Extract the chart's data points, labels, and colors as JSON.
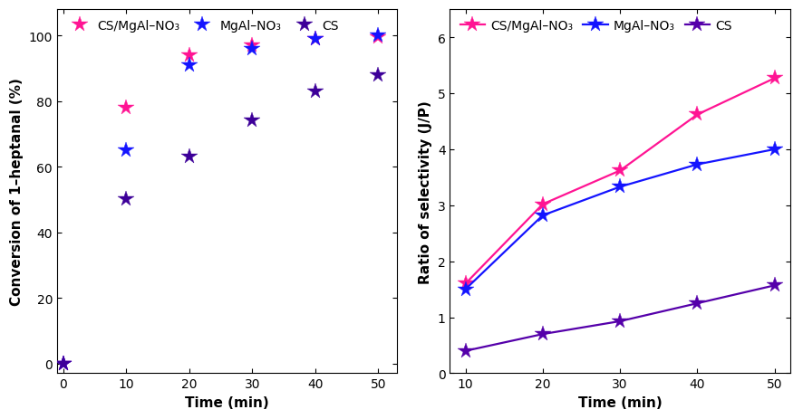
{
  "left": {
    "time_points": [
      0,
      10,
      20,
      30,
      40,
      50
    ],
    "CS_MgAl_NO3": {
      "scatter": [
        0,
        78,
        94,
        97,
        99,
        99.5
      ],
      "color": "#FF1493"
    },
    "MgAl_NO3": {
      "scatter": [
        0,
        65,
        91,
        96,
        99,
        100
      ],
      "color": "#1414FF"
    },
    "CS": {
      "scatter": [
        0,
        50,
        63,
        74,
        83,
        88
      ],
      "color": "#3D0099"
    },
    "curve_colors": {
      "CS_MgAl_NO3": "#FF1493",
      "MgAl_NO3": "#1414FF",
      "CS": "#000000"
    },
    "xlabel": "Time (min)",
    "ylabel": "Conversion of 1–heptanal (%)",
    "ylim": [
      -3,
      108
    ],
    "yticks": [
      0,
      20,
      40,
      60,
      80,
      100
    ],
    "xlim": [
      -1,
      53
    ],
    "xticks": [
      0,
      10,
      20,
      30,
      40,
      50
    ]
  },
  "right": {
    "time_points": [
      10,
      20,
      30,
      40,
      50
    ],
    "CS_MgAl_NO3": {
      "scatter": [
        1.6,
        3.02,
        3.62,
        4.62,
        5.27
      ],
      "color": "#FF1493"
    },
    "MgAl_NO3": {
      "scatter": [
        1.5,
        2.82,
        3.33,
        3.73,
        4.0
      ],
      "color": "#1414FF"
    },
    "CS": {
      "scatter": [
        0.4,
        0.7,
        0.93,
        1.25,
        1.57
      ],
      "color": "#5500AA"
    },
    "xlabel": "Time (min)",
    "ylabel": "Ratio of selectivity (J/P)",
    "ylim": [
      0,
      6.5
    ],
    "yticks": [
      0,
      1,
      2,
      3,
      4,
      5,
      6
    ],
    "xlim": [
      8,
      52
    ],
    "xticks": [
      10,
      20,
      30,
      40,
      50
    ]
  },
  "legend_labels": [
    "CS/MgAl–NO₃",
    "MgAl–NO₃",
    "CS"
  ],
  "marker": "*",
  "markersize": 13,
  "linewidth": 1.6,
  "fontsize_label": 11,
  "fontsize_tick": 10,
  "fontsize_legend": 10
}
